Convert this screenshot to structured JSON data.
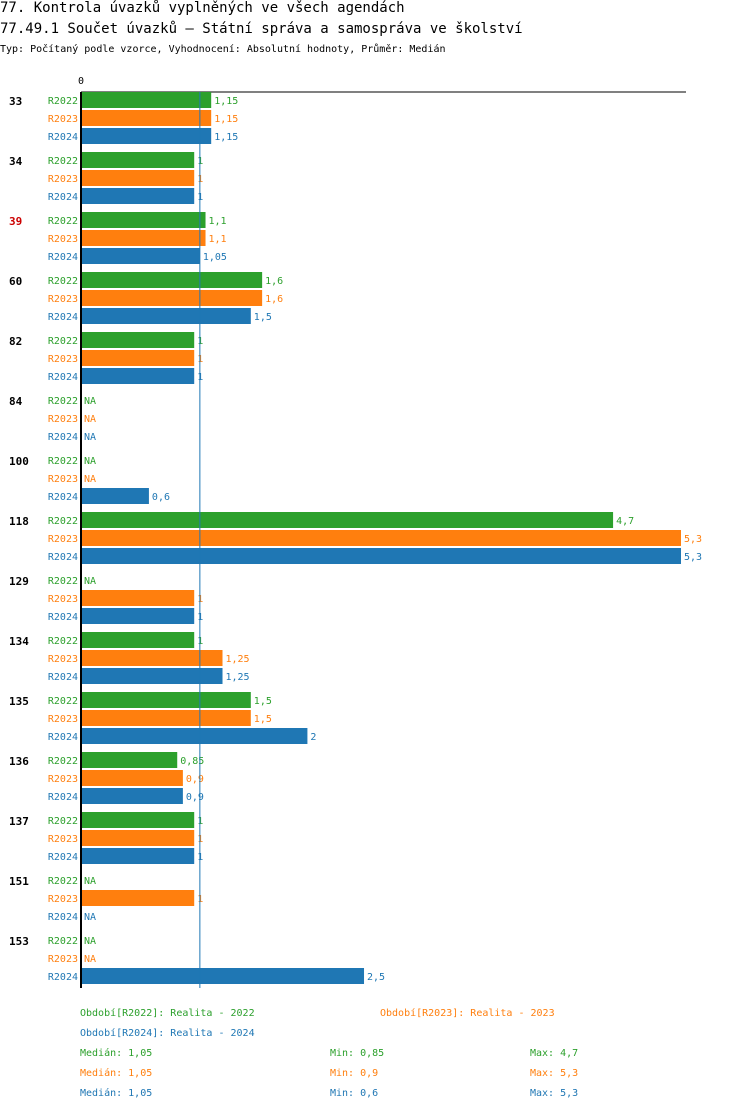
{
  "header": {
    "title": "77. Kontrola úvazků vyplněných ve všech agendách",
    "subtitle": "77.49.1 Součet úvazků – Státní správa a samospráva ve školství",
    "info": "Typ: Počítaný podle vzorce, Vyhodnocení: Absolutní hodnoty, Průměr: Medián"
  },
  "colors": {
    "R2022": "#2ca02c",
    "R2023": "#ff7f0e",
    "R2024": "#1f77b4",
    "highlight": "#cc0000",
    "median_line": "#1f77b4"
  },
  "chart_data": {
    "type": "bar",
    "orientation": "horizontal",
    "axis_zero_label": "0",
    "xlim": [
      0,
      5.3
    ],
    "median_marker": 1.05,
    "highlighted_category": "39",
    "na_label": "NA",
    "categories": [
      "33",
      "34",
      "39",
      "60",
      "82",
      "84",
      "100",
      "118",
      "129",
      "134",
      "135",
      "136",
      "137",
      "151",
      "153"
    ],
    "series": [
      {
        "name": "R2022",
        "values": [
          1.15,
          1,
          1.1,
          1.6,
          1,
          null,
          null,
          4.7,
          null,
          1,
          1.5,
          0.85,
          1,
          null,
          null
        ],
        "labels": [
          "1,15",
          "1",
          "1,1",
          "1,6",
          "1",
          "NA",
          "NA",
          "4,7",
          "NA",
          "1",
          "1,5",
          "0,85",
          "1",
          "NA",
          "NA"
        ]
      },
      {
        "name": "R2023",
        "values": [
          1.15,
          1,
          1.1,
          1.6,
          1,
          null,
          null,
          5.3,
          1,
          1.25,
          1.5,
          0.9,
          1,
          1,
          null
        ],
        "labels": [
          "1,15",
          "1",
          "1,1",
          "1,6",
          "1",
          "NA",
          "NA",
          "5,3",
          "1",
          "1,25",
          "1,5",
          "0,9",
          "1",
          "1",
          "NA"
        ]
      },
      {
        "name": "R2024",
        "values": [
          1.15,
          1,
          1.05,
          1.5,
          1,
          null,
          0.6,
          5.3,
          1,
          1.25,
          2,
          0.9,
          1,
          null,
          2.5
        ],
        "labels": [
          "1,15",
          "1",
          "1,05",
          "1,5",
          "1",
          "NA",
          "0,6",
          "5,3",
          "1",
          "1,25",
          "2",
          "0,9",
          "1",
          "NA",
          "2,5"
        ]
      }
    ]
  },
  "legend": {
    "period_r2022": "Období[R2022]: Realita - 2022",
    "period_r2023": "Období[R2023]: Realita - 2023",
    "period_r2024": "Období[R2024]: Realita - 2024",
    "stats": [
      {
        "median": "Medián: 1,05",
        "min": "Min: 0,85",
        "max": "Max: 4,7"
      },
      {
        "median": "Medián: 1,05",
        "min": "Min: 0,9",
        "max": "Max: 5,3"
      },
      {
        "median": "Medián: 1,05",
        "min": "Min: 0,6",
        "max": "Max: 5,3"
      }
    ]
  }
}
